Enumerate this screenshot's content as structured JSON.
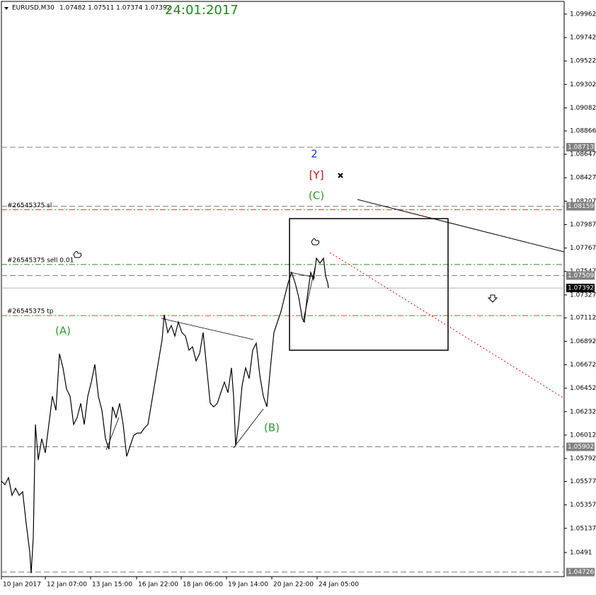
{
  "chart_data": {
    "type": "line",
    "title": "EURUSD,M30",
    "subtitle": "1.07482 1.07511 1.07374 1.07392",
    "date_label": "24:01:2017",
    "color": "#000000",
    "x": [
      0,
      5,
      10,
      15,
      20,
      25,
      30,
      35,
      40,
      42,
      45,
      48,
      52,
      57,
      62,
      67,
      72,
      77,
      82,
      87,
      92,
      97,
      102,
      107,
      112,
      117,
      122,
      127,
      132,
      137,
      142,
      147,
      152,
      157,
      162,
      167,
      172,
      177,
      182,
      187,
      192,
      197,
      202,
      207,
      212,
      217,
      222,
      227,
      230,
      235,
      240,
      245,
      250,
      255,
      260,
      265,
      270,
      275,
      280,
      285,
      290,
      295,
      300,
      305,
      310,
      315,
      320,
      325,
      328,
      331,
      335,
      340,
      345,
      350,
      355,
      360,
      365,
      370,
      375,
      380,
      385,
      390,
      395,
      400,
      405,
      410,
      415,
      420,
      425,
      428,
      432,
      437,
      441,
      445,
      450,
      455,
      458,
      461,
      462
    ],
    "values": [
      1.0558,
      1.05546,
      1.05613,
      1.05447,
      1.05513,
      1.05447,
      1.0548,
      1.05181,
      1.04916,
      1.04716,
      1.05048,
      1.06111,
      1.05779,
      1.05978,
      1.05845,
      1.06111,
      1.06376,
      1.06244,
      1.06775,
      1.06642,
      1.06443,
      1.06376,
      1.06111,
      1.06177,
      1.0631,
      1.06111,
      1.06376,
      1.06509,
      1.06675,
      1.06376,
      1.06244,
      1.05978,
      1.05878,
      1.06277,
      1.06177,
      1.0631,
      1.06111,
      1.05812,
      1.05912,
      1.06011,
      1.06031,
      1.06031,
      1.06078,
      1.06111,
      1.0631,
      1.06509,
      1.06708,
      1.06908,
      1.0714,
      1.06974,
      1.0704,
      1.06941,
      1.07074,
      1.06974,
      1.06941,
      1.06808,
      1.06841,
      1.06708,
      1.06775,
      1.06974,
      1.06642,
      1.0631,
      1.06277,
      1.0631,
      1.0641,
      1.06509,
      1.0641,
      1.06642,
      1.06376,
      1.05912,
      1.06111,
      1.06476,
      1.06642,
      1.06542,
      1.06808,
      1.06874,
      1.06576,
      1.06376,
      1.06277,
      1.06642,
      1.06974,
      1.07074,
      1.07173,
      1.07306,
      1.07439,
      1.07538,
      1.07439,
      1.07306,
      1.07107,
      1.07074,
      1.07306,
      1.07538,
      1.07472,
      1.07671,
      1.07625,
      1.07671,
      1.07505,
      1.07439,
      1.07392
    ],
    "xlim": [
      0,
      795
    ],
    "ylim": [
      1.04684,
      1.10081
    ],
    "xticks": [
      {
        "value": 0,
        "label": "10 Jan 2017"
      },
      {
        "value": 62,
        "label": "12 Jan 07:00"
      },
      {
        "value": 126,
        "label": "13 Jan 15:00"
      },
      {
        "value": 191,
        "label": "16 Jan 22:00"
      },
      {
        "value": 254,
        "label": "18 Jan 06:00"
      },
      {
        "value": 318,
        "label": "19 Jan 14:00"
      },
      {
        "value": 382,
        "label": "20 Jan 22:00"
      },
      {
        "value": 446,
        "label": "24 Jan 05:00"
      }
    ],
    "yticks": [
      1.09962,
      1.09742,
      1.09522,
      1.09302,
      1.09082,
      1.08866,
      1.08647,
      1.08427,
      1.08207,
      1.07987,
      1.07767,
      1.07547,
      1.07327,
      1.07112,
      1.06892,
      1.06672,
      1.06452,
      1.06232,
      1.06012,
      1.05792,
      1.05577,
      1.05357,
      1.05137,
      1.0491
    ],
    "levels": [
      {
        "value": 1.08713,
        "color": "#808080",
        "dash": "8,4",
        "axis_label": true
      },
      {
        "value": 1.08159,
        "color": "#808080",
        "dash": "8,4",
        "axis_label": true
      },
      {
        "value": 1.07509,
        "color": "#808080",
        "dash": "8,4",
        "axis_label": true
      },
      {
        "value": 1.07392,
        "color": "#b0b0b0",
        "dash": "none",
        "axis_label": true,
        "label_bg": "#000000"
      },
      {
        "value": 1.05902,
        "color": "#808080",
        "dash": "8,4",
        "axis_label": true
      },
      {
        "value": 1.04726,
        "color": "#808080",
        "dash": "8,4",
        "axis_label": true
      }
    ],
    "orders": [
      {
        "label": "#26545375 sl",
        "value": 1.08126,
        "color": "#e0461e"
      },
      {
        "label": "#26545375 sell 0.01",
        "value": 1.07612,
        "color": "#2e8b2e"
      },
      {
        "label": "#26545375 tp",
        "value": 1.07133,
        "color": "#e0461e"
      }
    ],
    "annotations": [
      {
        "text": "2",
        "color": "#1a33cc"
      },
      {
        "text": "[Y]",
        "color": "#e01010"
      },
      {
        "text": "(C)",
        "color": "#2e9a2e"
      },
      {
        "text": "(A)",
        "color": "#2e9a2e"
      },
      {
        "text": "(B)",
        "color": "#2e9a2e"
      }
    ]
  }
}
